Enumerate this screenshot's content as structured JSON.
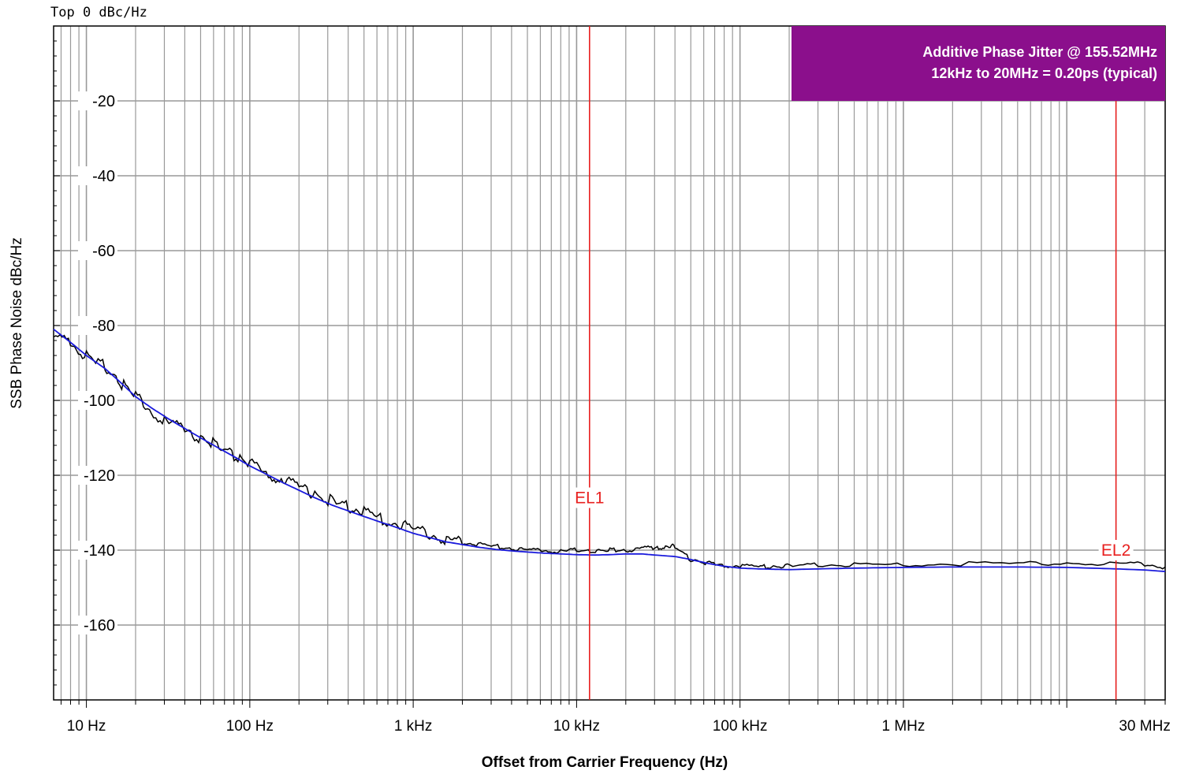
{
  "top_label": "Top 0 dBc/Hz",
  "annotation": {
    "line1": "Additive Phase Jitter @ 155.52MHz",
    "line2": "12kHz to 20MHz = 0.20ps (typical)"
  },
  "colors": {
    "annotation_bg": "#8b0f8c",
    "marker": "#e8201f",
    "measured": "#000000",
    "reference": "#1a1adc",
    "grid": "#999999"
  },
  "chart_data": {
    "type": "line",
    "title": "",
    "xlabel": "Offset from Carrier Frequency (Hz)",
    "ylabel": "SSB Phase Noise   dBc/Hz",
    "x_scale": "log",
    "xlim": [
      6.3,
      40000000
    ],
    "ylim": [
      -180,
      0
    ],
    "grid": true,
    "x_ticks": [
      {
        "value": 10,
        "label": "10 Hz"
      },
      {
        "value": 100,
        "label": "100 Hz"
      },
      {
        "value": 1000,
        "label": "1 kHz"
      },
      {
        "value": 10000,
        "label": "10 kHz"
      },
      {
        "value": 100000,
        "label": "100 kHz"
      },
      {
        "value": 1000000,
        "label": "1 MHz"
      },
      {
        "value": 30000000,
        "label": "30 MHz"
      }
    ],
    "y_ticks": [
      {
        "value": -20,
        "label": "-20"
      },
      {
        "value": -40,
        "label": "-40"
      },
      {
        "value": -60,
        "label": "-60"
      },
      {
        "value": -80,
        "label": "-80"
      },
      {
        "value": -100,
        "label": "-100"
      },
      {
        "value": -120,
        "label": "-120"
      },
      {
        "value": -140,
        "label": "-140"
      },
      {
        "value": -160,
        "label": "-160"
      }
    ],
    "markers": [
      {
        "label": "EL1",
        "x": 12000,
        "label_y": -126
      },
      {
        "label": "EL2",
        "x": 20000000,
        "label_y": -140
      }
    ],
    "series": [
      {
        "color": "#000000",
        "x": [
          6.3,
          8,
          10,
          13,
          16,
          20,
          25,
          32,
          40,
          50,
          63,
          80,
          100,
          130,
          160,
          200,
          250,
          320,
          400,
          500,
          630,
          800,
          1000,
          1300,
          1600,
          2000,
          2500,
          3200,
          4000,
          5000,
          6300,
          8000,
          10000,
          13000,
          16000,
          20000,
          25000,
          30000,
          35000,
          40000,
          50000,
          63000,
          80000,
          100000,
          130000,
          160000,
          200000,
          300000,
          500000,
          1000000,
          2000000,
          5000000,
          10000000,
          20000000,
          30000000,
          40000000
        ],
        "y": [
          -83,
          -85,
          -88,
          -91,
          -95,
          -99,
          -103,
          -106,
          -108,
          -110,
          -112,
          -114.5,
          -117,
          -119.5,
          -121.5,
          -123,
          -125,
          -127,
          -128.5,
          -130,
          -131.5,
          -133,
          -134.5,
          -136,
          -137,
          -138,
          -138.5,
          -139,
          -139.5,
          -140,
          -140.2,
          -140.2,
          -140,
          -140.3,
          -140,
          -140,
          -139.5,
          -139.5,
          -139,
          -139,
          -142.5,
          -143.5,
          -144,
          -144.3,
          -144.5,
          -144.3,
          -144.2,
          -144,
          -144,
          -143.8,
          -143.7,
          -143.6,
          -143.4,
          -143.5,
          -143.8,
          -144.5
        ]
      },
      {
        "color": "#1a1adc",
        "x": [
          6.3,
          8,
          10,
          13,
          16,
          20,
          25,
          32,
          40,
          50,
          63,
          80,
          100,
          130,
          160,
          200,
          250,
          320,
          400,
          500,
          630,
          800,
          1000,
          1300,
          1600,
          2000,
          2500,
          3200,
          4000,
          5000,
          6300,
          8000,
          10000,
          13000,
          16000,
          20000,
          25000,
          30000,
          40000,
          50000,
          63000,
          80000,
          100000,
          130000,
          160000,
          200000,
          300000,
          500000,
          1000000,
          2000000,
          5000000,
          10000000,
          20000000,
          30000000,
          40000000
        ],
        "y": [
          -81,
          -84.5,
          -88,
          -91.5,
          -95,
          -99,
          -102,
          -105,
          -107.5,
          -110,
          -112.5,
          -115,
          -117.5,
          -120,
          -122,
          -124,
          -126,
          -128,
          -129.5,
          -131,
          -132.5,
          -134,
          -135.5,
          -136.8,
          -137.8,
          -138.5,
          -139.2,
          -139.8,
          -140.2,
          -140.5,
          -140.8,
          -141,
          -141.2,
          -141.3,
          -141.2,
          -141,
          -141,
          -141.3,
          -141.7,
          -142.5,
          -143.5,
          -144.3,
          -144.8,
          -145,
          -145.1,
          -145.2,
          -145,
          -144.8,
          -144.6,
          -144.5,
          -144.5,
          -144.6,
          -145,
          -145.3,
          -145.7
        ]
      }
    ]
  }
}
